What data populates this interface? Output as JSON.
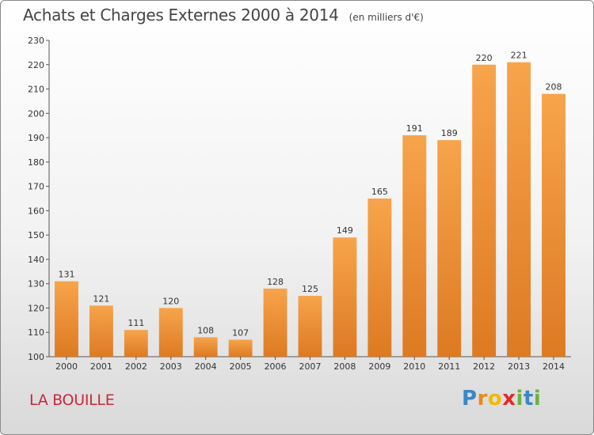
{
  "header": {
    "title": "Achats et Charges Externes 2000 à 2014",
    "unit": "(en milliers d'€)"
  },
  "footer": {
    "city": "LA BOUILLE",
    "logo": "Proxiti"
  },
  "colors": {
    "bar_light": "#f7a44b",
    "bar_dark": "#dd7a22",
    "title": "#444444",
    "city": "#c8283c"
  },
  "chart_data": {
    "type": "bar",
    "title": "Achats et Charges Externes 2000 à 2014",
    "subtitle": "(en milliers d'€)",
    "categories": [
      "2000",
      "2001",
      "2002",
      "2003",
      "2004",
      "2005",
      "2006",
      "2007",
      "2008",
      "2009",
      "2010",
      "2011",
      "2012",
      "2013",
      "2014"
    ],
    "values": [
      131,
      121,
      111,
      120,
      108,
      107,
      128,
      125,
      149,
      165,
      191,
      189,
      220,
      221,
      208
    ],
    "ylim": [
      100,
      230
    ],
    "yticks": [
      100,
      110,
      120,
      130,
      140,
      150,
      160,
      170,
      180,
      190,
      200,
      210,
      220,
      230
    ],
    "grid": false,
    "legend": "none"
  }
}
